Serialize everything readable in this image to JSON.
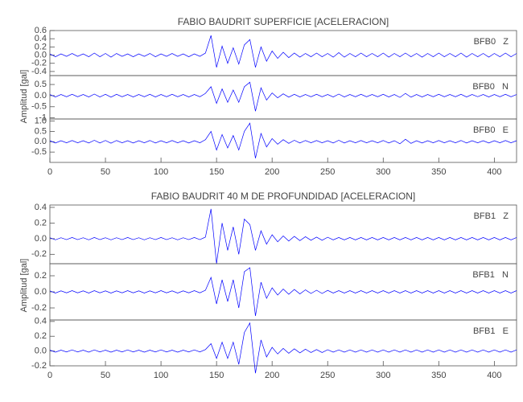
{
  "chart_data": [
    {
      "type": "line",
      "title": "FABIO BAUDRIT SUPERFICIE [ACELERACION]",
      "y_label": "Amplitud [gal]",
      "xlim": [
        0,
        420
      ],
      "xticks": [
        0,
        50,
        100,
        150,
        200,
        250,
        300,
        350,
        400
      ],
      "x": [
        0,
        5,
        10,
        15,
        20,
        25,
        30,
        35,
        40,
        45,
        50,
        55,
        60,
        65,
        70,
        75,
        80,
        85,
        90,
        95,
        100,
        105,
        110,
        115,
        120,
        125,
        130,
        135,
        140,
        145,
        150,
        155,
        160,
        165,
        170,
        175,
        180,
        185,
        190,
        195,
        200,
        205,
        210,
        215,
        220,
        225,
        230,
        235,
        240,
        245,
        250,
        255,
        260,
        265,
        270,
        275,
        280,
        285,
        290,
        295,
        300,
        305,
        310,
        315,
        320,
        325,
        330,
        335,
        340,
        345,
        350,
        355,
        360,
        365,
        370,
        375,
        380,
        385,
        390,
        395,
        400,
        405,
        410,
        415,
        420
      ],
      "series": [
        {
          "name": "BFB0   Z",
          "color": "#0000ff",
          "ylim": [
            -0.5,
            0.6
          ],
          "yticks": [
            {
              "value": -0.4,
              "label": "-0.4"
            },
            -0.2,
            {
              "value": 0,
              "label": "0.0"
            },
            0.2,
            0.4,
            0.6
          ],
          "values": [
            0.03,
            -0.04,
            0.03,
            -0.03,
            0.04,
            -0.03,
            0.03,
            -0.04,
            0.05,
            -0.04,
            0.04,
            -0.05,
            0.04,
            -0.03,
            0.03,
            -0.04,
            0.03,
            -0.03,
            0.04,
            -0.04,
            0.03,
            -0.03,
            0.04,
            -0.03,
            0.03,
            -0.04,
            0.03,
            -0.03,
            0.05,
            0.48,
            -0.3,
            0.22,
            -0.2,
            0.18,
            -0.22,
            0.25,
            0.38,
            -0.3,
            0.2,
            -0.15,
            0.1,
            -0.08,
            0.07,
            -0.06,
            0.05,
            -0.05,
            0.04,
            -0.04,
            0.05,
            -0.04,
            0.04,
            -0.05,
            0.06,
            -0.05,
            0.04,
            -0.04,
            0.05,
            -0.04,
            0.04,
            -0.04,
            0.05,
            -0.05,
            0.04,
            -0.04,
            0.05,
            -0.04,
            0.04,
            -0.05,
            0.04,
            -0.04,
            0.05,
            -0.04,
            0.04,
            -0.04,
            0.05,
            -0.05,
            0.04,
            -0.04,
            0.04,
            -0.05,
            0.04,
            -0.04,
            0.05,
            -0.04,
            0.04
          ]
        },
        {
          "name": "BFB0   N",
          "color": "#0000ff",
          "ylim": [
            -1.05,
            0.9
          ],
          "yticks": [
            -1,
            -0.5,
            {
              "value": 0,
              "label": "0.0"
            },
            0.5
          ],
          "values": [
            0.05,
            -0.06,
            0.05,
            -0.05,
            0.06,
            -0.05,
            0.05,
            -0.06,
            0.07,
            -0.06,
            0.06,
            -0.07,
            0.06,
            -0.05,
            0.05,
            -0.06,
            0.05,
            -0.05,
            0.06,
            -0.06,
            0.05,
            -0.05,
            0.06,
            -0.05,
            0.05,
            -0.06,
            0.05,
            -0.05,
            0.1,
            0.4,
            -0.35,
            0.3,
            -0.3,
            0.25,
            -0.3,
            0.4,
            0.6,
            -0.7,
            0.35,
            -0.2,
            0.12,
            -0.1,
            0.08,
            -0.07,
            0.06,
            -0.06,
            0.05,
            -0.05,
            0.06,
            -0.05,
            0.05,
            -0.06,
            0.07,
            -0.06,
            0.05,
            -0.05,
            0.06,
            -0.05,
            0.05,
            -0.05,
            0.06,
            -0.06,
            0.05,
            -0.08,
            0.1,
            -0.07,
            0.05,
            -0.06,
            0.05,
            -0.05,
            0.06,
            -0.05,
            0.05,
            -0.05,
            0.06,
            -0.06,
            0.05,
            -0.05,
            0.05,
            -0.06,
            0.05,
            -0.05,
            0.06,
            -0.05,
            0.05
          ]
        },
        {
          "name": "BFB0   E",
          "color": "#0000ff",
          "ylim": [
            -1.0,
            1.1
          ],
          "yticks": [
            -0.5,
            {
              "value": 0,
              "label": "0.0"
            },
            0.5,
            {
              "value": 1,
              "label": "1.0"
            }
          ],
          "values": [
            0.05,
            -0.06,
            0.05,
            -0.05,
            0.06,
            -0.05,
            0.05,
            -0.06,
            0.07,
            -0.06,
            0.06,
            -0.07,
            0.06,
            -0.05,
            0.05,
            -0.06,
            0.05,
            -0.05,
            0.06,
            -0.06,
            0.05,
            -0.05,
            0.06,
            -0.05,
            0.05,
            -0.06,
            0.05,
            -0.05,
            0.1,
            0.5,
            -0.4,
            0.35,
            -0.3,
            0.3,
            -0.4,
            0.5,
            0.9,
            -0.8,
            0.4,
            -0.25,
            0.15,
            -0.12,
            0.1,
            -0.08,
            0.07,
            -0.06,
            0.06,
            -0.05,
            0.06,
            -0.05,
            0.05,
            -0.06,
            0.07,
            -0.06,
            0.05,
            -0.05,
            0.06,
            -0.05,
            0.05,
            -0.05,
            0.06,
            -0.06,
            0.05,
            -0.1,
            0.12,
            -0.08,
            0.05,
            -0.06,
            0.05,
            -0.05,
            0.06,
            -0.05,
            0.05,
            -0.05,
            0.06,
            -0.06,
            0.05,
            -0.05,
            0.05,
            -0.06,
            0.05,
            -0.05,
            0.06,
            -0.05,
            0.05
          ]
        }
      ]
    },
    {
      "type": "line",
      "title": "FABIO BAUDRIT 40 M DE PROFUNDIDAD [ACELERACION]",
      "y_label": "Amplitud [gal]",
      "xlim": [
        0,
        420
      ],
      "xticks": [
        0,
        50,
        100,
        150,
        200,
        250,
        300,
        350,
        400
      ],
      "x": [
        0,
        5,
        10,
        15,
        20,
        25,
        30,
        35,
        40,
        45,
        50,
        55,
        60,
        65,
        70,
        75,
        80,
        85,
        90,
        95,
        100,
        105,
        110,
        115,
        120,
        125,
        130,
        135,
        140,
        145,
        150,
        155,
        160,
        165,
        170,
        175,
        180,
        185,
        190,
        195,
        200,
        205,
        210,
        215,
        220,
        225,
        230,
        235,
        240,
        245,
        250,
        255,
        260,
        265,
        270,
        275,
        280,
        285,
        290,
        295,
        300,
        305,
        310,
        315,
        320,
        325,
        330,
        335,
        340,
        345,
        350,
        355,
        360,
        365,
        370,
        375,
        380,
        385,
        390,
        395,
        400,
        405,
        410,
        415,
        420
      ],
      "series": [
        {
          "name": "BFB1   Z",
          "color": "#0000ff",
          "ylim": [
            -0.32,
            0.43
          ],
          "yticks": [
            -0.2,
            {
              "value": 0,
              "label": "0.0"
            },
            0.2,
            0.4
          ],
          "values": [
            0.012,
            -0.015,
            0.012,
            -0.012,
            0.015,
            -0.012,
            0.012,
            -0.015,
            0.015,
            -0.012,
            0.012,
            -0.015,
            0.012,
            -0.012,
            0.015,
            -0.012,
            0.012,
            -0.015,
            0.012,
            -0.012,
            0.015,
            -0.012,
            0.012,
            -0.015,
            0.012,
            -0.012,
            0.015,
            -0.012,
            0.02,
            0.38,
            -0.32,
            0.2,
            -0.15,
            0.15,
            -0.2,
            0.25,
            0.18,
            -0.15,
            0.1,
            -0.07,
            0.05,
            -0.04,
            0.035,
            -0.03,
            0.03,
            -0.025,
            0.025,
            -0.02,
            0.02,
            -0.02,
            0.018,
            -0.015,
            0.015,
            -0.015,
            0.015,
            -0.015,
            0.015,
            -0.015,
            0.015,
            -0.015,
            0.015,
            -0.015,
            0.015,
            -0.015,
            0.015,
            -0.015,
            0.015,
            -0.015,
            0.015,
            -0.015,
            0.015,
            -0.015,
            0.015,
            -0.015,
            0.015,
            -0.015,
            0.015,
            -0.015,
            0.015,
            -0.015,
            0.015,
            -0.015,
            0.015,
            -0.015,
            0.015
          ]
        },
        {
          "name": "BFB1   N",
          "color": "#0000ff",
          "ylim": [
            -0.35,
            0.35
          ],
          "yticks": [
            -0.2,
            {
              "value": 0,
              "label": "0.0"
            },
            0.2
          ],
          "values": [
            0.012,
            -0.015,
            0.012,
            -0.012,
            0.015,
            -0.012,
            0.012,
            -0.015,
            0.015,
            -0.012,
            0.012,
            -0.015,
            0.012,
            -0.012,
            0.015,
            -0.012,
            0.012,
            -0.015,
            0.012,
            -0.012,
            0.015,
            -0.012,
            0.012,
            -0.015,
            0.012,
            -0.012,
            0.015,
            -0.012,
            0.02,
            0.18,
            -0.15,
            0.15,
            -0.12,
            0.15,
            -0.2,
            0.25,
            0.3,
            -0.3,
            0.12,
            -0.08,
            0.05,
            -0.04,
            0.035,
            -0.03,
            0.03,
            -0.025,
            0.025,
            -0.02,
            0.02,
            -0.02,
            0.018,
            -0.015,
            0.015,
            -0.015,
            0.015,
            -0.015,
            0.015,
            -0.015,
            0.015,
            -0.015,
            0.015,
            -0.015,
            0.015,
            -0.015,
            0.015,
            -0.015,
            0.015,
            -0.015,
            0.015,
            -0.015,
            0.015,
            -0.015,
            0.015,
            -0.015,
            0.015,
            -0.015,
            0.015,
            -0.015,
            0.015,
            -0.015,
            0.015,
            -0.015,
            0.015,
            -0.015,
            0.015
          ]
        },
        {
          "name": "BFB1   E",
          "color": "#0000ff",
          "ylim": [
            -0.2,
            0.42
          ],
          "yticks": [
            -0.2,
            {
              "value": 0,
              "label": "0.0"
            },
            0.2,
            0.4
          ],
          "values": [
            0.012,
            -0.015,
            0.012,
            -0.012,
            0.015,
            -0.012,
            0.012,
            -0.015,
            0.015,
            -0.012,
            0.012,
            -0.015,
            0.012,
            -0.012,
            0.015,
            -0.012,
            0.012,
            -0.015,
            0.012,
            -0.012,
            0.015,
            -0.012,
            0.012,
            -0.015,
            0.012,
            -0.012,
            0.015,
            -0.012,
            0.02,
            0.1,
            -0.1,
            0.12,
            -0.1,
            0.12,
            -0.18,
            0.25,
            0.38,
            -0.3,
            0.15,
            -0.08,
            0.05,
            -0.04,
            0.035,
            -0.03,
            0.03,
            -0.025,
            0.025,
            -0.02,
            0.02,
            -0.02,
            0.018,
            -0.015,
            0.015,
            -0.015,
            0.015,
            -0.015,
            0.015,
            -0.015,
            0.015,
            -0.015,
            0.015,
            -0.015,
            0.015,
            -0.015,
            0.015,
            -0.015,
            0.015,
            -0.015,
            0.015,
            -0.015,
            0.015,
            -0.015,
            0.015,
            -0.015,
            0.015,
            -0.015,
            0.015,
            -0.015,
            0.015,
            -0.015,
            0.015,
            -0.015,
            0.015,
            -0.015,
            0.015
          ]
        }
      ]
    }
  ]
}
